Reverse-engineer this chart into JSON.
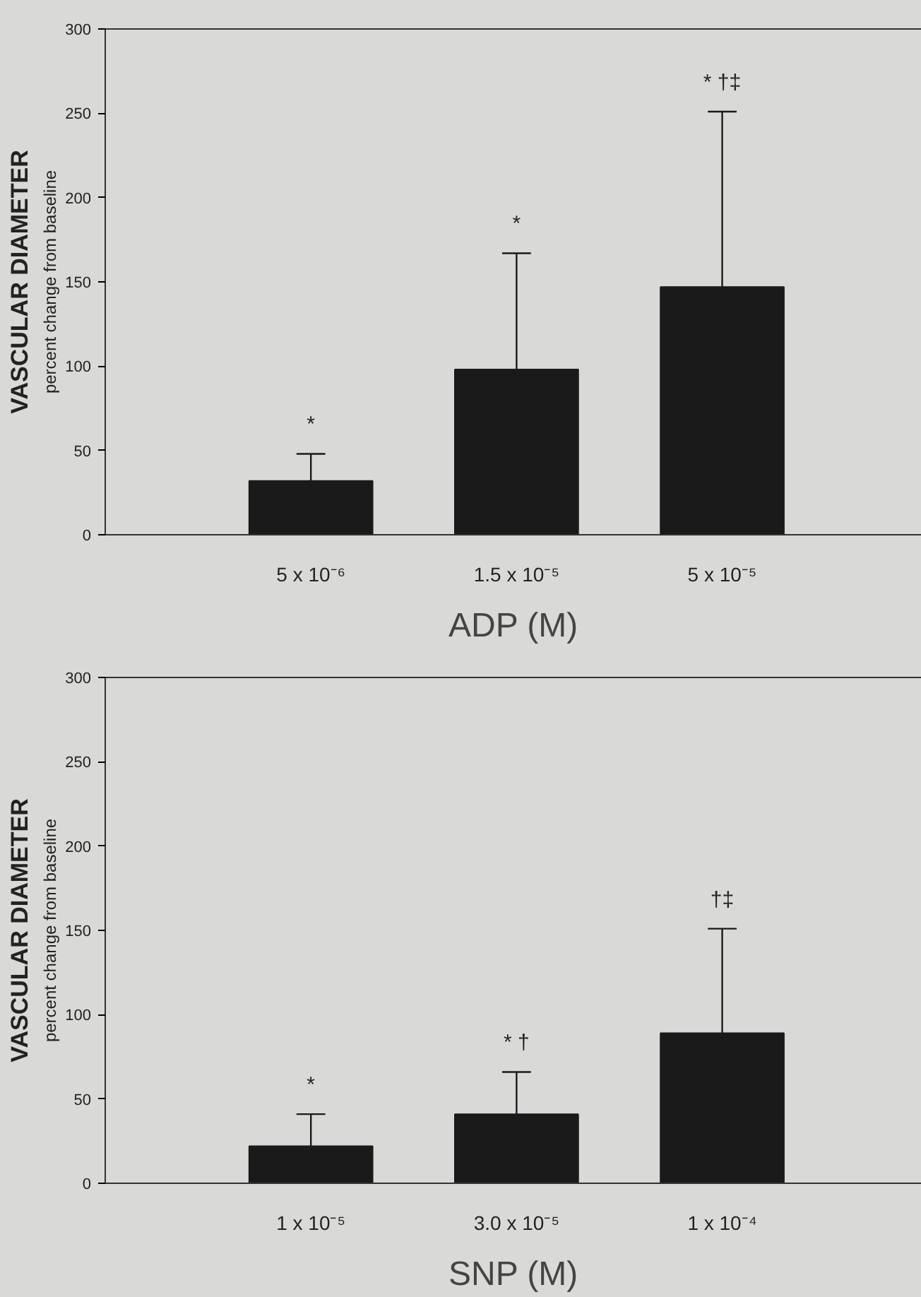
{
  "chart_data": [
    {
      "type": "bar",
      "xlabel": "ADP (M)",
      "ylabel": "VASCULAR DIAMETER",
      "categories": [
        "5 x 10⁻⁶",
        "1.5 x 10⁻⁵",
        "5 x 10⁻⁵"
      ],
      "values": [
        32,
        98,
        147
      ],
      "color": "#1a1a1a",
      "errors": [
        [
          32,
          48
        ],
        [
          98,
          167
        ],
        [
          147,
          251
        ]
      ],
      "ylim": [
        0,
        300
      ],
      "yticks": [
        0,
        50,
        100,
        150,
        200,
        250,
        300
      ],
      "grid": false,
      "annotations": [
        "percent change from baseline",
        {
          "text": "*",
          "x": "5 x 10⁻⁶",
          "y": 48
        },
        {
          "text": "*",
          "x": "1.5 x 10⁻⁵",
          "y": 167
        },
        {
          "text": "* †‡",
          "x": "5 x 10⁻⁵",
          "y": 251
        }
      ]
    },
    {
      "type": "bar",
      "xlabel": "SNP (M)",
      "ylabel": "VASCULAR DIAMETER",
      "categories": [
        "1 x 10⁻⁵",
        "3.0 x 10⁻⁵",
        "1 x 10⁻⁴"
      ],
      "values": [
        22,
        41,
        89
      ],
      "color": "#1a1a1a",
      "errors": [
        [
          22,
          41
        ],
        [
          41,
          66
        ],
        [
          89,
          151
        ]
      ],
      "ylim": [
        0,
        300
      ],
      "yticks": [
        0,
        50,
        100,
        150,
        200,
        250,
        300
      ],
      "grid": false,
      "annotations": [
        "percent change from baseline",
        {
          "text": "*",
          "x": "1 x 10⁻⁵",
          "y": 41
        },
        {
          "text": "* †",
          "x": "3.0 x 10⁻⁵",
          "y": 66
        },
        {
          "text": "†‡",
          "x": "1 x 10⁻⁴",
          "y": 151
        }
      ]
    }
  ]
}
